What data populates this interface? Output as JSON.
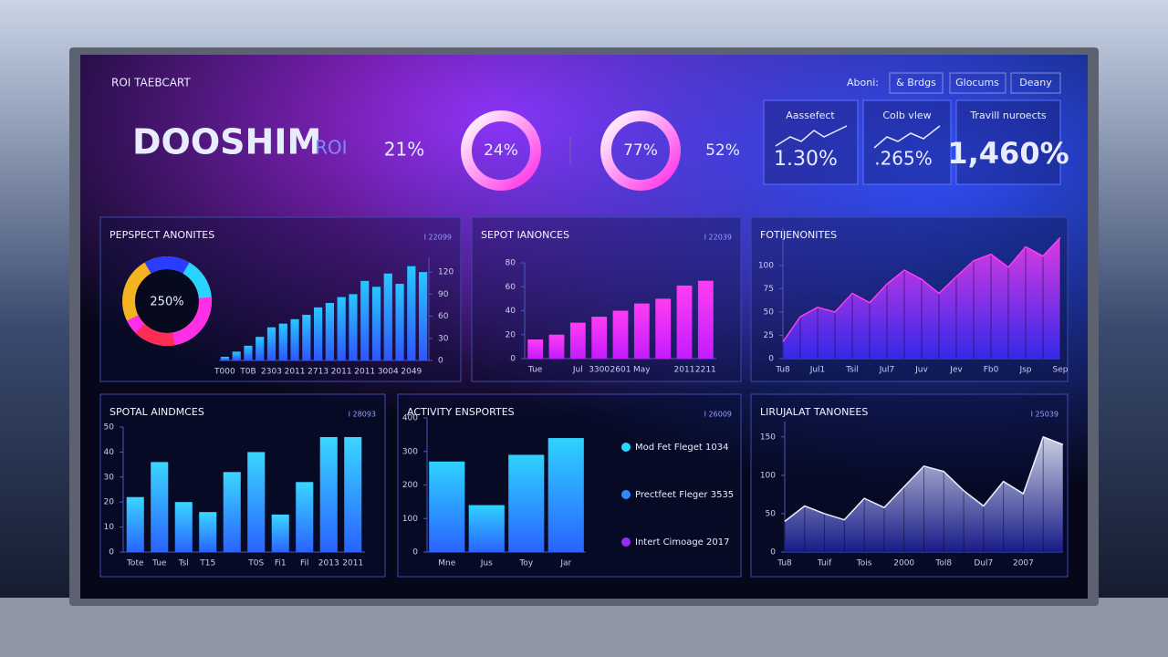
{
  "header": {
    "title": "ROI TAEBCART",
    "nav_label": "Aboni:",
    "nav": [
      "& Brdgs",
      "Glocums",
      "Deany"
    ],
    "brand": "DOOSHIM",
    "brand_suffix": "ROI"
  },
  "stats": [
    "21%",
    "24%",
    "77%",
    "52%"
  ],
  "kpi_cards": [
    {
      "title": "Aassefect",
      "value": "1.30%"
    },
    {
      "title": "Colb vlew",
      "value": ".265%"
    },
    {
      "title": "Travill nuroects",
      "value": "1,460%"
    }
  ],
  "chart_data": [
    {
      "type": "bar",
      "title": "PEPSPECT ANONITES",
      "corner": "I 22099",
      "inset_label": "250%",
      "categories": [
        "T000",
        null,
        "T0B",
        null,
        "2303",
        null,
        "2011",
        null,
        "2713",
        null,
        "2011",
        null,
        "2011",
        null,
        "3004",
        null,
        "2049",
        null
      ],
      "values": [
        5,
        12,
        20,
        32,
        45,
        50,
        56,
        62,
        72,
        78,
        86,
        90,
        108,
        100,
        118,
        104,
        128,
        120
      ],
      "color": "#27c8ff",
      "color2": "#2f55ff",
      "ylim": [
        0,
        140
      ],
      "yticks": [
        0,
        30,
        60,
        90,
        120
      ],
      "yaxis_side": "right"
    },
    {
      "type": "bar",
      "title": "SEPOT IANONCES",
      "corner": "I 22039",
      "categories": [
        "Tue",
        null,
        "Jul",
        "3300",
        "2601",
        "May",
        null,
        "2011",
        "2211"
      ],
      "values": [
        16,
        20,
        30,
        35,
        40,
        46,
        50,
        61,
        65
      ],
      "color": "#ff3df2",
      "color2": "#c21cff",
      "ylim": [
        0,
        80
      ],
      "yticks": [
        0,
        20,
        40,
        60,
        80
      ],
      "yaxis_side": "left"
    },
    {
      "type": "area",
      "title": "FOTIJENONITES",
      "corner": null,
      "categories": [
        "Tu8",
        null,
        "Jul1",
        null,
        "Tsil",
        null,
        "Jul7",
        null,
        "Juv",
        null,
        "Jev",
        null,
        "Fb0",
        null,
        "Jsp",
        null,
        "Sep"
      ],
      "values": [
        18,
        45,
        55,
        50,
        70,
        60,
        80,
        95,
        85,
        70,
        88,
        105,
        112,
        98,
        120,
        110,
        130
      ],
      "color": "#ff3df2",
      "color2": "#3a2bff",
      "ylim": [
        0,
        140
      ],
      "yticks": [
        0,
        25,
        50,
        75,
        100
      ],
      "yaxis_side": "left"
    },
    {
      "type": "bar",
      "title": "SPOTAL AINDMCES",
      "corner": "I 28093",
      "categories": [
        "Tote",
        "Tue",
        "Tsl",
        "T15",
        null,
        "T0S",
        "Fi1",
        "Fil",
        "2013",
        "2011"
      ],
      "values": [
        22,
        36,
        20,
        16,
        32,
        40,
        15,
        28,
        46,
        46
      ],
      "color": "#3ad6ff",
      "color2": "#2a63ff",
      "ylim": [
        0,
        50
      ],
      "yticks": [
        0,
        10,
        20,
        30,
        40,
        50
      ],
      "yaxis_side": "left"
    },
    {
      "type": "bar",
      "title": "ACTIVITY ENSPORTES",
      "corner": "I 26009",
      "categories": [
        "Mne",
        "Jus",
        "Toy",
        "Jar"
      ],
      "values": [
        270,
        140,
        290,
        340
      ],
      "color": "#2fd2ff",
      "color2": "#2a63ff",
      "ylim": [
        0,
        400
      ],
      "yticks": [
        0,
        100,
        200,
        300,
        400
      ],
      "yaxis_side": "left",
      "legend": [
        {
          "name": "Mod Fet Fleget 1034",
          "color": "#25d8ff"
        },
        {
          "name": "Prectfeet Fleger 3535",
          "color": "#2a8cff"
        },
        {
          "name": "Intert Cimoage 2017",
          "color": "#9a2bff"
        }
      ]
    },
    {
      "type": "area",
      "title": "LIRUJALAT TANONEES",
      "corner": "I 25039",
      "categories": [
        "Tu8",
        null,
        "Tuif",
        null,
        "Tois",
        null,
        "2000",
        null,
        "Tol8",
        null,
        "Dul7",
        null,
        "2007",
        null,
        null
      ],
      "values": [
        40,
        60,
        50,
        42,
        70,
        58,
        85,
        112,
        105,
        80,
        60,
        92,
        76,
        150,
        140
      ],
      "color": "#eaf0ff",
      "color2": "#1b1f9a",
      "ylim": [
        0,
        170
      ],
      "yticks": [
        0,
        50,
        100,
        150
      ],
      "yaxis_side": "left"
    }
  ]
}
